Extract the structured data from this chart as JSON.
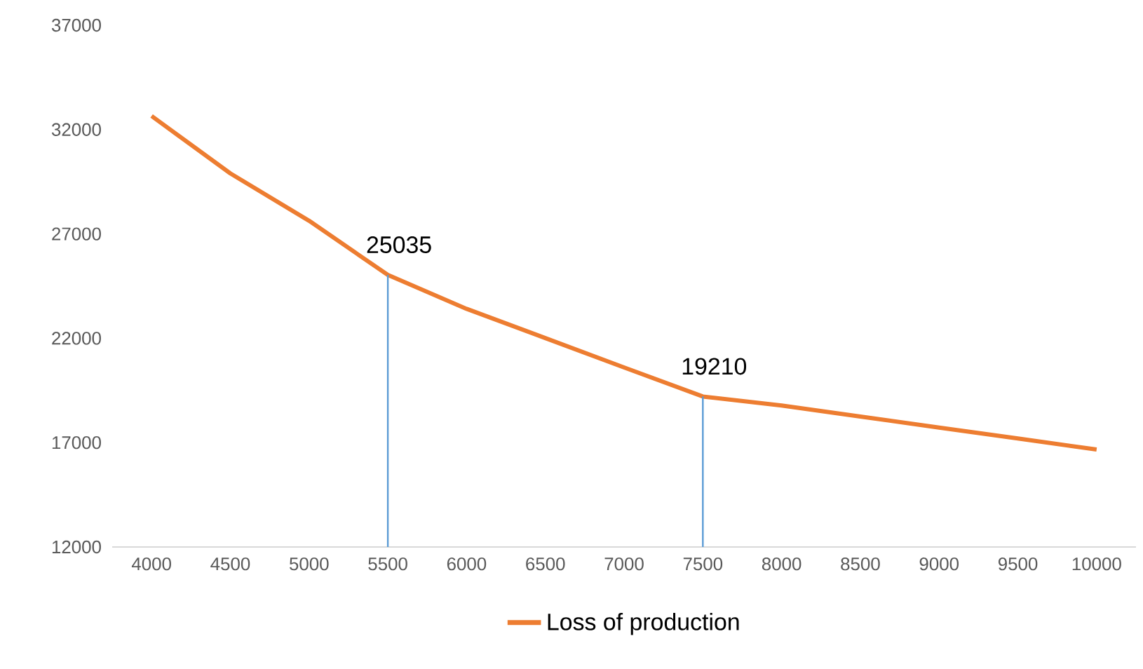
{
  "chart_data": {
    "type": "line",
    "x": [
      4000,
      4500,
      5000,
      5500,
      6000,
      6500,
      7000,
      7500,
      8000,
      8500,
      9000,
      9500,
      10000
    ],
    "series": [
      {
        "name": "Loss of production",
        "color": "#ed7d31",
        "values": [
          32650,
          29900,
          27630,
          25035,
          23410,
          22010,
          20600,
          19210,
          18780,
          18250,
          17720,
          17200,
          16670
        ]
      }
    ],
    "xlim": [
      3750,
      10250
    ],
    "xticks": [
      4000,
      4500,
      5000,
      5500,
      6000,
      6500,
      7000,
      7500,
      8000,
      8500,
      9000,
      9500,
      10000
    ],
    "ylim": [
      12000,
      37000
    ],
    "yticks": [
      12000,
      17000,
      22000,
      27000,
      32000,
      37000
    ],
    "annotations": [
      {
        "text": "25035",
        "x": 5500,
        "y": 25035
      },
      {
        "text": "19210",
        "x": 7500,
        "y": 19210
      }
    ],
    "grid": false,
    "legend": "bottom",
    "marker": "none",
    "line_style": "solid"
  }
}
